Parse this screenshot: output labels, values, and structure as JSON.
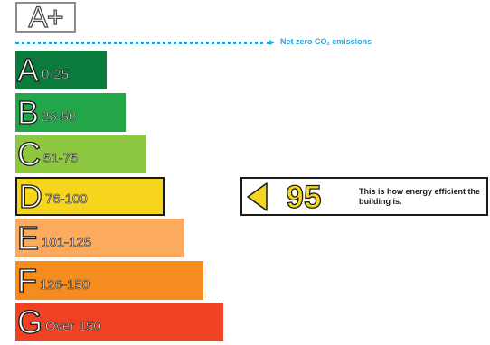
{
  "top_band": {
    "label": "A+"
  },
  "net_zero": {
    "label": "Net zero CO",
    "subscript": "2",
    "suffix": " emissions",
    "color": "#2aa4d8"
  },
  "rating": {
    "value": "95",
    "band": "D",
    "caption": "This is how energy efficient the building is.",
    "color": "#f7d51d"
  },
  "chart_data": {
    "type": "bar",
    "title": "",
    "categories": [
      "A",
      "B",
      "C",
      "D",
      "E",
      "F",
      "G"
    ],
    "bands": [
      {
        "letter": "A",
        "range": "0-25",
        "color": "#0a7a3d"
      },
      {
        "letter": "B",
        "range": "26-50",
        "color": "#23a64a"
      },
      {
        "letter": "C",
        "range": "51-75",
        "color": "#8dc63f"
      },
      {
        "letter": "D",
        "range": "76-100",
        "color": "#f7d51d"
      },
      {
        "letter": "E",
        "range": "101-125",
        "color": "#fcaa5d"
      },
      {
        "letter": "F",
        "range": "126-150",
        "color": "#f68c1f"
      },
      {
        "letter": "G",
        "range": "Over 150",
        "color": "#ef4123"
      }
    ],
    "current_band": "D",
    "current_value": 95
  }
}
